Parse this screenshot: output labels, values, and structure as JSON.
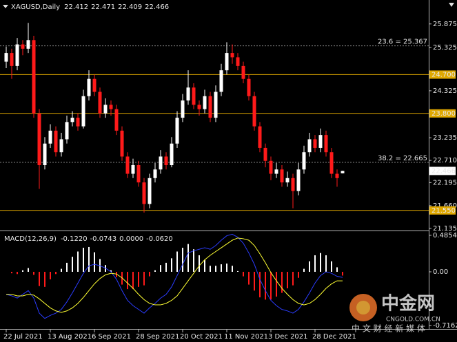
{
  "chart_data": [
    {
      "type": "candlestick",
      "title": "XAGUSD,Daily",
      "header_values": [
        "22.412",
        "22.471",
        "22.409",
        "22.466"
      ],
      "categories": [
        "22 Jul 2021",
        null,
        null,
        null,
        null,
        null,
        null,
        null,
        "13 Aug 2021",
        null,
        null,
        null,
        null,
        null,
        null,
        null,
        "6 Sep 2021",
        null,
        null,
        null,
        null,
        null,
        null,
        null,
        "28 Sep 2021",
        null,
        null,
        null,
        null,
        null,
        null,
        null,
        "20 Oct 2021",
        null,
        null,
        null,
        null,
        null,
        null,
        null,
        "11 Nov 2021",
        null,
        null,
        null,
        null,
        null,
        null,
        null,
        "3 Dec 2021",
        null,
        null,
        null,
        null,
        null,
        null,
        null,
        "28 Dec 2021",
        null,
        null,
        null,
        null,
        null
      ],
      "ohlc": [
        [
          25.0,
          25.35,
          24.85,
          25.2
        ],
        [
          25.2,
          25.3,
          24.6,
          24.9
        ],
        [
          24.9,
          25.55,
          24.8,
          25.4
        ],
        [
          25.4,
          25.5,
          25.15,
          25.3
        ],
        [
          25.3,
          25.9,
          25.2,
          25.5
        ],
        [
          25.5,
          25.6,
          23.7,
          23.8
        ],
        [
          23.8,
          23.9,
          22.05,
          22.6
        ],
        [
          22.6,
          23.25,
          22.5,
          23.1
        ],
        [
          23.1,
          23.55,
          23.0,
          23.4
        ],
        [
          23.4,
          23.5,
          22.8,
          22.9
        ],
        [
          22.9,
          23.35,
          22.8,
          23.2
        ],
        [
          23.2,
          23.75,
          23.1,
          23.6
        ],
        [
          23.6,
          23.85,
          23.5,
          23.7
        ],
        [
          23.7,
          23.8,
          23.4,
          23.5
        ],
        [
          23.5,
          24.35,
          23.45,
          24.2
        ],
        [
          24.2,
          24.8,
          24.1,
          24.6
        ],
        [
          24.6,
          24.7,
          24.2,
          24.3
        ],
        [
          24.3,
          24.4,
          23.7,
          23.8
        ],
        [
          23.8,
          24.15,
          23.7,
          24.0
        ],
        [
          24.0,
          24.1,
          23.75,
          23.9
        ],
        [
          23.9,
          24.0,
          23.3,
          23.4
        ],
        [
          23.4,
          23.5,
          22.7,
          22.8
        ],
        [
          22.8,
          22.9,
          22.3,
          22.4
        ],
        [
          22.4,
          22.75,
          22.3,
          22.6
        ],
        [
          22.6,
          22.7,
          22.1,
          22.2
        ],
        [
          22.2,
          22.3,
          21.5,
          21.7
        ],
        [
          21.7,
          22.4,
          21.6,
          22.3
        ],
        [
          22.3,
          22.65,
          22.2,
          22.5
        ],
        [
          22.5,
          22.95,
          22.4,
          22.8
        ],
        [
          22.8,
          22.9,
          22.5,
          22.6
        ],
        [
          22.6,
          23.25,
          22.55,
          23.1
        ],
        [
          23.1,
          23.85,
          23.0,
          23.7
        ],
        [
          23.7,
          24.25,
          23.6,
          24.1
        ],
        [
          24.1,
          24.8,
          24.0,
          24.4
        ],
        [
          24.4,
          24.5,
          23.9,
          24.0
        ],
        [
          24.0,
          24.1,
          23.75,
          23.9
        ],
        [
          23.9,
          24.35,
          23.8,
          24.2
        ],
        [
          24.2,
          24.3,
          23.6,
          23.7
        ],
        [
          23.7,
          24.45,
          23.6,
          24.3
        ],
        [
          24.3,
          24.95,
          24.2,
          24.8
        ],
        [
          24.8,
          25.45,
          24.7,
          25.2
        ],
        [
          25.2,
          25.4,
          24.95,
          25.1
        ],
        [
          25.1,
          25.2,
          24.8,
          24.9
        ],
        [
          24.9,
          25.0,
          24.5,
          24.6
        ],
        [
          24.6,
          24.7,
          24.1,
          24.2
        ],
        [
          24.2,
          24.3,
          23.4,
          23.5
        ],
        [
          23.5,
          23.6,
          22.9,
          23.0
        ],
        [
          23.0,
          23.1,
          22.55,
          22.7
        ],
        [
          22.7,
          22.8,
          22.25,
          22.4
        ],
        [
          22.4,
          22.65,
          22.3,
          22.5
        ],
        [
          22.5,
          22.6,
          22.1,
          22.2
        ],
        [
          22.2,
          22.45,
          22.1,
          22.3
        ],
        [
          22.3,
          22.4,
          21.6,
          22.0
        ],
        [
          22.0,
          22.65,
          21.9,
          22.5
        ],
        [
          22.5,
          23.05,
          22.4,
          22.9
        ],
        [
          22.9,
          23.35,
          22.8,
          23.2
        ],
        [
          23.2,
          23.3,
          22.9,
          23.0
        ],
        [
          23.0,
          23.45,
          22.9,
          23.3
        ],
        [
          23.3,
          23.4,
          22.8,
          22.9
        ],
        [
          22.9,
          23.0,
          22.3,
          22.4
        ],
        [
          22.4,
          22.5,
          22.1,
          22.3
        ],
        [
          22.412,
          22.471,
          22.409,
          22.466
        ]
      ],
      "up_color": "#ffffff",
      "down_color": "#ff1a1a",
      "ylim": [
        21.1,
        26.43
      ],
      "yticks": [
        25.875,
        25.325,
        24.325,
        23.235,
        {
          "value": 22.71,
          "label": "22.710"
        },
        22.195,
        {
          "value": 21.66,
          "label": "21.660"
        },
        21.135
      ],
      "levels": [
        {
          "value": 24.7,
          "label": "24.700"
        },
        {
          "value": 23.8,
          "label": "23.800"
        },
        {
          "value": 21.55,
          "label": "21.550"
        }
      ],
      "level_color": "#e0a800",
      "fib_levels": [
        {
          "value": 25.367,
          "label": "23.6 = 25.367"
        },
        {
          "value": 22.665,
          "label": "38.2 = 22.665"
        }
      ],
      "fib_color": "#8c8c8c",
      "last_price": {
        "value": 22.466,
        "label": "22.466"
      }
    },
    {
      "type": "macd",
      "title": "MACD(12,26,9)",
      "header_values": [
        "-0.1220",
        "-0.0743",
        "0.0000",
        "-0.0620"
      ],
      "ylim": [
        -0.76,
        0.531
      ],
      "yticks": [
        0.4854,
        {
          "value": 0,
          "label": "0.00"
        },
        -0.7162
      ],
      "histogram": {
        "up_color": "#ffffff",
        "down_color": "#ff1a1a",
        "values": [
          0,
          -0.02,
          -0.03,
          0.02,
          0.05,
          -0.04,
          -0.19,
          -0.2,
          -0.1,
          -0.03,
          0.04,
          0.12,
          0.2,
          0.27,
          0.32,
          0.33,
          0.26,
          0.17,
          0.09,
          0.02,
          -0.07,
          -0.17,
          -0.23,
          -0.23,
          -0.2,
          -0.18,
          -0.06,
          0.02,
          0.09,
          0.12,
          0.18,
          0.27,
          0.32,
          0.37,
          0.3,
          0.22,
          0.16,
          0.08,
          0.08,
          0.1,
          0.11,
          0.08,
          0.01,
          -0.06,
          -0.17,
          -0.25,
          -0.34,
          -0.37,
          -0.37,
          -0.33,
          -0.28,
          -0.22,
          -0.18,
          -0.08,
          0.04,
          0.14,
          0.22,
          0.25,
          0.22,
          0.14,
          0.06,
          -0.05
        ]
      },
      "series": [
        {
          "color": "#2b3cff",
          "values": [
            -0.3,
            -0.32,
            -0.35,
            -0.3,
            -0.25,
            -0.35,
            -0.55,
            -0.62,
            -0.58,
            -0.55,
            -0.5,
            -0.4,
            -0.28,
            -0.15,
            -0.02,
            0.08,
            0.1,
            0.08,
            0.05,
            0,
            -0.1,
            -0.25,
            -0.38,
            -0.45,
            -0.5,
            -0.55,
            -0.48,
            -0.42,
            -0.35,
            -0.3,
            -0.2,
            -0.05,
            0.1,
            0.25,
            0.28,
            0.3,
            0.32,
            0.3,
            0.35,
            0.42,
            0.48,
            0.5,
            0.46,
            0.38,
            0.25,
            0.1,
            -0.1,
            -0.25,
            -0.38,
            -0.45,
            -0.5,
            -0.52,
            -0.55,
            -0.5,
            -0.4,
            -0.28,
            -0.15,
            -0.05,
            0,
            -0.02,
            -0.06,
            -0.074
          ]
        },
        {
          "color": "#ffff33",
          "values": [
            -0.3,
            -0.3,
            -0.32,
            -0.32,
            -0.3,
            -0.31,
            -0.36,
            -0.42,
            -0.48,
            -0.52,
            -0.54,
            -0.52,
            -0.48,
            -0.42,
            -0.34,
            -0.25,
            -0.16,
            -0.09,
            -0.04,
            -0.02,
            -0.03,
            -0.08,
            -0.15,
            -0.22,
            -0.3,
            -0.37,
            -0.42,
            -0.44,
            -0.44,
            -0.42,
            -0.38,
            -0.32,
            -0.22,
            -0.12,
            -0.02,
            0.08,
            0.16,
            0.22,
            0.27,
            0.32,
            0.37,
            0.42,
            0.45,
            0.44,
            0.42,
            0.35,
            0.24,
            0.12,
            -0.01,
            -0.12,
            -0.22,
            -0.3,
            -0.37,
            -0.42,
            -0.44,
            -0.42,
            -0.37,
            -0.3,
            -0.22,
            -0.16,
            -0.12,
            -0.12
          ]
        }
      ]
    }
  ],
  "watermark": {
    "name": "中金网",
    "domain": "CNGOLD.COM.CN",
    "tagline": "中 文 财 经 新 媒 体"
  }
}
